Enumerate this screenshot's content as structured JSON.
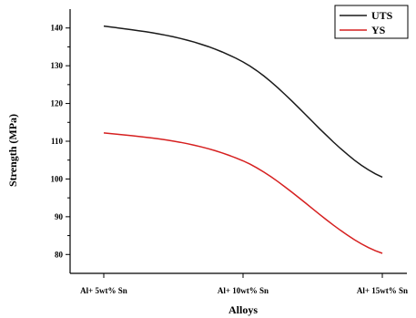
{
  "chart_data": {
    "type": "line",
    "categories": [
      "Al+ 5wt% Sn",
      "Al+ 10wt% Sn",
      "Al+ 15wt% Sn"
    ],
    "series": [
      {
        "name": "UTS",
        "color": "#1a1a1a",
        "values": [
          140.5,
          131.0,
          100.5
        ]
      },
      {
        "name": "YS",
        "color": "#d62020",
        "values": [
          112.2,
          104.8,
          80.3
        ]
      }
    ],
    "xlabel": "Alloys",
    "ylabel": "Strength (MPa)",
    "ylim": [
      75,
      145
    ],
    "yticks": [
      80,
      90,
      100,
      110,
      120,
      130,
      140
    ],
    "grid": false,
    "legend_position": "top-right"
  }
}
